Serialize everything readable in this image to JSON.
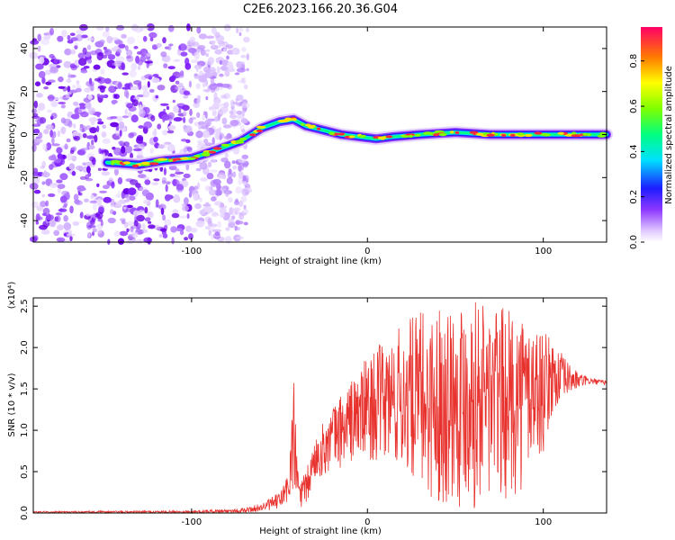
{
  "figure": {
    "title": "C2E6.2023.166.20.36.G04"
  },
  "chart_data": [
    {
      "type": "heatmap",
      "xlabel": "Height of straight line (km)",
      "ylabel": "Frequency (Hz)",
      "xlim": [
        -190,
        136
      ],
      "ylim": [
        -50,
        50
      ],
      "xticks": [
        -100,
        0,
        100
      ],
      "yticks": [
        -40,
        -20,
        0,
        20,
        40
      ],
      "ridge": {
        "x": [
          -148,
          -130,
          -115,
          -100,
          -85,
          -72,
          -60,
          -50,
          -42,
          -35,
          -25,
          -15,
          -5,
          5,
          15,
          30,
          50,
          70,
          90,
          110,
          136
        ],
        "y": [
          -13,
          -14,
          -12,
          -11,
          -7,
          -3,
          3,
          6,
          7,
          4,
          2,
          0,
          -1,
          -2,
          -1,
          0,
          1,
          0,
          0,
          0,
          0
        ]
      },
      "colorbar": {
        "label": "Normalized spectral amplitude",
        "range": [
          0.0,
          0.95
        ],
        "ticks": [
          "0.0",
          "0.2",
          "0.4",
          "0.6",
          "0.8"
        ],
        "tick_values": [
          0.0,
          0.2,
          0.4,
          0.6,
          0.8
        ]
      }
    },
    {
      "type": "line",
      "xlabel": "Height of straight line (km)",
      "ylabel": "SNR (10 * v/v)",
      "scale_note": "(x10⁴)",
      "xlim": [
        -190,
        136
      ],
      "ylim": [
        0,
        2.6
      ],
      "xticks": [
        -100,
        0,
        100
      ],
      "yticks": [
        "0.0",
        "0.5",
        "1.0",
        "1.5",
        "2.0",
        "2.5"
      ],
      "ytick_values": [
        0.0,
        0.5,
        1.0,
        1.5,
        2.0,
        2.5
      ],
      "series_color": "#e8322e",
      "envelope": {
        "x": [
          -190,
          -100,
          -70,
          -60,
          -50,
          -45,
          -42,
          -40,
          -38,
          -35,
          -30,
          -20,
          -10,
          0,
          10,
          20,
          30,
          40,
          50,
          60,
          70,
          80,
          90,
          100,
          105,
          110,
          115,
          120,
          125,
          130,
          136
        ],
        "low": [
          0.0,
          0.0,
          0.0,
          0.02,
          0.05,
          0.1,
          0.2,
          0.1,
          0.05,
          0.05,
          0.4,
          0.5,
          0.6,
          0.65,
          0.6,
          0.5,
          0.3,
          0.1,
          0.05,
          0.05,
          0.0,
          0.1,
          0.3,
          0.7,
          1.2,
          1.3,
          1.45,
          1.5,
          1.55,
          1.55,
          1.55
        ],
        "high": [
          0.02,
          0.03,
          0.06,
          0.12,
          0.25,
          0.5,
          1.7,
          0.7,
          0.4,
          0.5,
          0.9,
          1.3,
          1.6,
          1.9,
          2.1,
          2.3,
          2.45,
          2.5,
          2.6,
          2.6,
          2.55,
          2.45,
          2.4,
          2.2,
          2.1,
          1.95,
          1.8,
          1.7,
          1.65,
          1.62,
          1.6
        ]
      }
    }
  ]
}
